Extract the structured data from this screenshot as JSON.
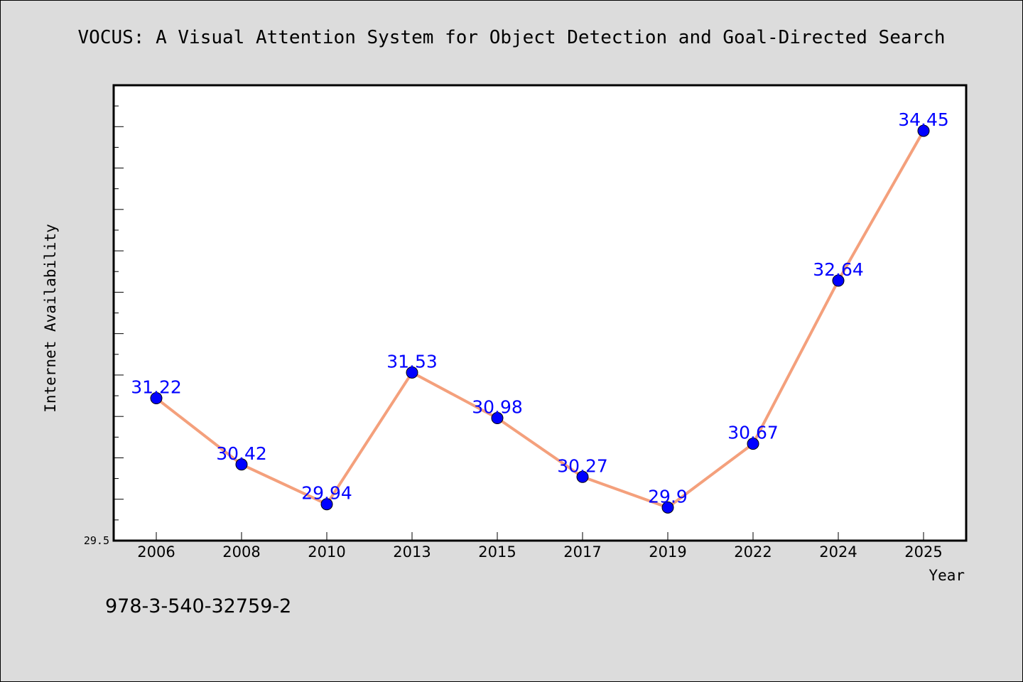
{
  "chart_data": {
    "type": "line",
    "title": "VOCUS: A Visual Attention System for Object Detection and Goal-Directed Search",
    "xlabel": "Year",
    "ylabel": "Internet Availability",
    "categories": [
      "2006",
      "2008",
      "2010",
      "2013",
      "2015",
      "2017",
      "2019",
      "2022",
      "2024",
      "2025"
    ],
    "series": [
      {
        "values": [
          31.22,
          30.42,
          29.94,
          31.53,
          30.98,
          30.27,
          29.9,
          30.67,
          32.64,
          34.45
        ],
        "labels": [
          "31.22",
          "30.42",
          "29.94",
          "31.53",
          "30.98",
          "30.27",
          "29.9",
          "30.67",
          "32.64",
          "34.45"
        ],
        "line_color": "#f4a07c",
        "marker_color": "#0000ff",
        "label_color": "#0000ff"
      }
    ],
    "ylim": [
      29.5,
      35.0
    ],
    "ytick_labels": [
      "29.5"
    ],
    "grid": false,
    "legend": "none"
  },
  "footnote": "978-3-540-32759-2",
  "colors": {
    "background": "#dcdcdc",
    "plot_background": "#ffffff",
    "axis": "#000000"
  }
}
